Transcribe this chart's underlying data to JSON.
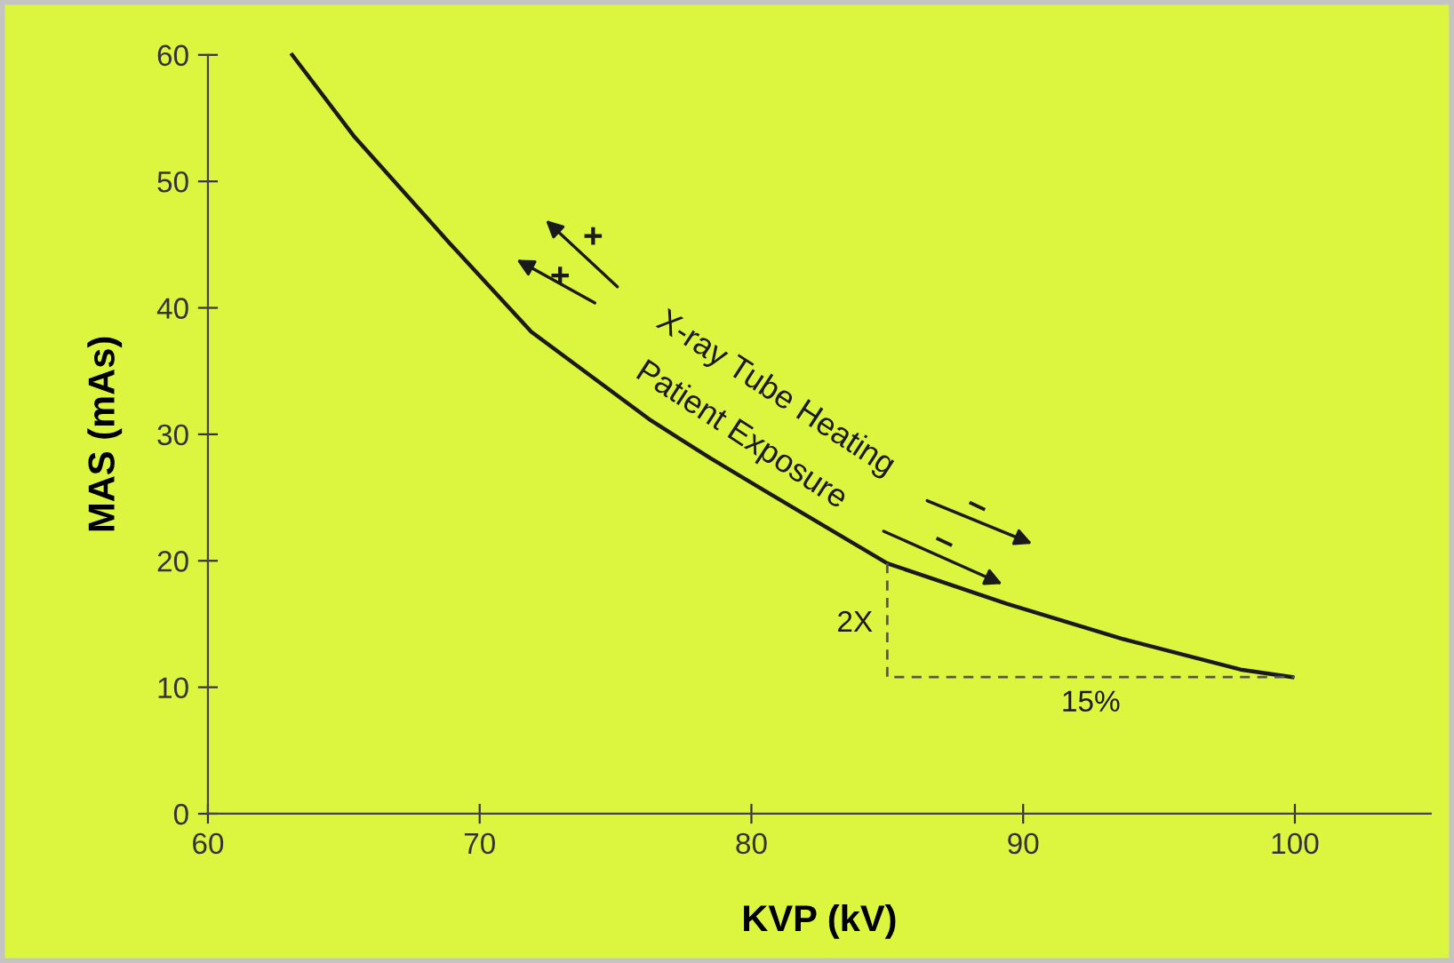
{
  "chart_data": {
    "type": "line",
    "xlabel": "KVP (kV)",
    "ylabel": "MAS (mAs)",
    "xlim": [
      60,
      105
    ],
    "ylim": [
      0,
      60
    ],
    "xticks": [
      60,
      70,
      80,
      90,
      100
    ],
    "yticks": [
      0,
      10,
      20,
      30,
      40,
      50,
      60
    ],
    "grid": false,
    "legend": false,
    "marker": "none",
    "series": [
      {
        "color": "#1a1a1a",
        "line_style": "solid",
        "x": [
          63.1,
          65.4,
          68.9,
          71.9,
          76.3,
          78.5,
          80.6,
          85,
          89.4,
          93.7,
          98,
          99.9
        ],
        "values": [
          60,
          53.5,
          45.1,
          38.1,
          31.1,
          28.1,
          25.4,
          19.8,
          16.6,
          13.8,
          11.4,
          10.8
        ]
      },
      {
        "color": "#555555",
        "line_style": "dashed",
        "x": [
          85,
          85,
          100
        ],
        "values": [
          19.8,
          10.8,
          10.8
        ]
      }
    ],
    "annotations": [
      "X-ray Tube Heating",
      "Patient Exposure",
      "+",
      "+",
      "–",
      "–",
      "2X",
      "15%"
    ]
  }
}
